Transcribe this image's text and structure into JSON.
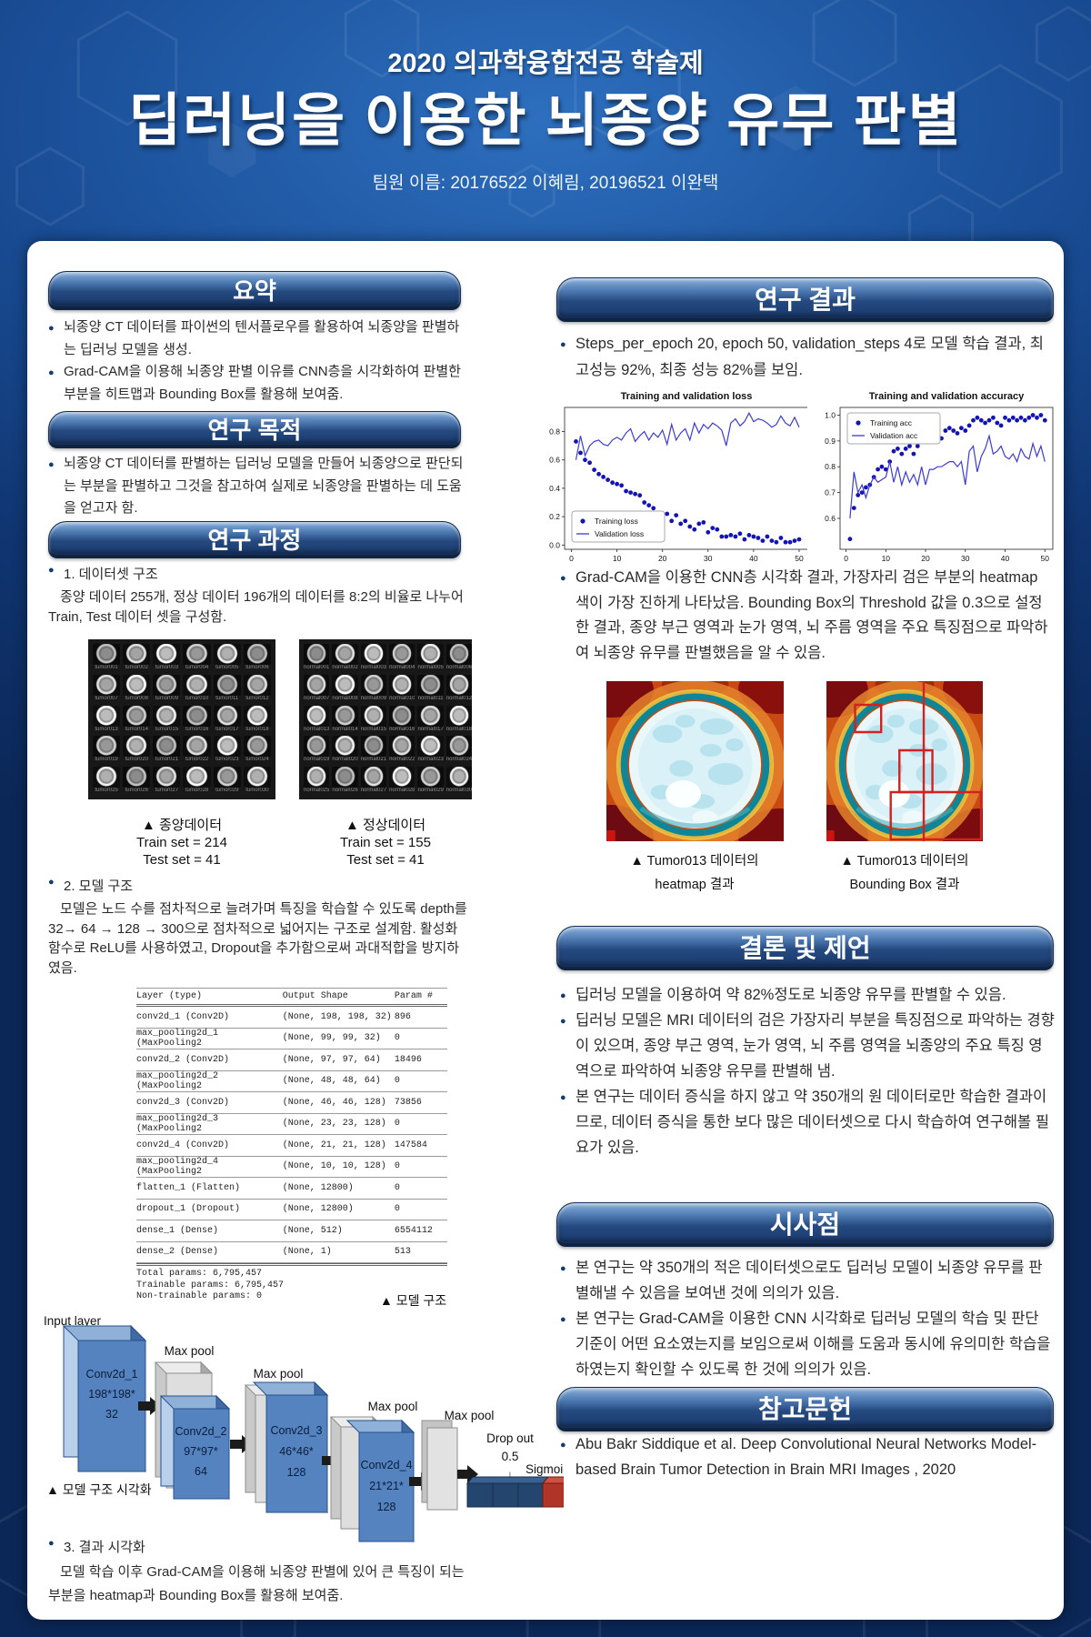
{
  "poster": {
    "event": "2020 의과학융합전공 학술제",
    "title": "딥러닝을 이용한 뇌종양 유무 판별",
    "team": "팀원 이름: 20176522 이혜림, 20196521 이완택"
  },
  "colors": {
    "background": "#103571",
    "header_bar": "#24497f",
    "bullet": "#173a6f",
    "chart_dot_blue": "#1414b4",
    "chart_line_blue": "#3b3bd6",
    "bounding_box_red": "#d42020"
  },
  "sections": {
    "summary": {
      "heading": "요약",
      "bullets": [
        "뇌종양 CT 데이터를 파이썬의 텐서플로우를 활용하여 뇌종양을 판별하는 딥러닝 모델을 생성.",
        "Grad-CAM을 이용해 뇌종양 판별 이유를 CNN층을 시각화하여 판별한 부분을 히트맵과 Bounding Box를 활용해 보여줌."
      ]
    },
    "purpose": {
      "heading": "연구 목적",
      "bullets": [
        "뇌종양 CT 데이터를 판별하는 딥러닝 모델을 만들어 뇌종양으로 판단되는 부분을 판별하고 그것을 참고하여 실제로 뇌종양을 판별하는 데 도움을 얻고자 함."
      ]
    },
    "process": {
      "heading": "연구 과정",
      "item1_title": "1. 데이터셋 구조",
      "item1_body": "종양 데이터 255개, 정상 데이터 196개의 데이터를 8:2의 비율로 나누어 Train, Test 데이터 셋을 구성함.",
      "datasets": [
        {
          "caption": "▲ 종양데이터",
          "train": "Train set = 214",
          "test": "Test set = 41",
          "label_prefix": "tumor",
          "label_count": 30
        },
        {
          "caption": "▲ 정상데이터",
          "train": "Train set = 155",
          "test": "Test set = 41",
          "label_prefix": "normal",
          "label_count": 30
        }
      ],
      "item2_title": "2. 모델 구조",
      "item2_body": "모델은 노드 수를 점차적으로 늘려가며 특징을 학습할 수 있도록 depth를 32→ 64 → 128 → 300으로 점차적으로 넓어지는 구조로 설계함. 활성화 함수로 ReLU를 사용하였고, Dropout을 추가함으로써 과대적합을 방지하였음.",
      "model_table": {
        "headers": [
          "Layer (type)",
          "Output Shape",
          "Param #"
        ],
        "rows": [
          [
            "conv2d_1 (Conv2D)",
            "(None, 198, 198, 32)",
            "896"
          ],
          [
            "max_pooling2d_1 (MaxPooling2",
            "(None, 99, 99, 32)",
            "0"
          ],
          [
            "conv2d_2 (Conv2D)",
            "(None, 97, 97, 64)",
            "18496"
          ],
          [
            "max_pooling2d_2 (MaxPooling2",
            "(None, 48, 48, 64)",
            "0"
          ],
          [
            "conv2d_3 (Conv2D)",
            "(None, 46, 46, 128)",
            "73856"
          ],
          [
            "max_pooling2d_3 (MaxPooling2",
            "(None, 23, 23, 128)",
            "0"
          ],
          [
            "conv2d_4 (Conv2D)",
            "(None, 21, 21, 128)",
            "147584"
          ],
          [
            "max_pooling2d_4 (MaxPooling2",
            "(None, 10, 10, 128)",
            "0"
          ],
          [
            "flatten_1 (Flatten)",
            "(None, 12800)",
            "0"
          ],
          [
            "dropout_1 (Dropout)",
            "(None, 12800)",
            "0"
          ],
          [
            "dense_1 (Dense)",
            "(None, 512)",
            "6554112"
          ],
          [
            "dense_2 (Dense)",
            "(None, 1)",
            "513"
          ]
        ],
        "totals": [
          "Total params: 6,795,457",
          "Trainable params: 6,795,457",
          "Non-trainable params: 0"
        ]
      },
      "table_caption": "▲ 모델 구조",
      "diagram": {
        "input_label": "Input layer",
        "maxpool_label": "Max pool",
        "dropout_label": "Drop out",
        "dropout_value": "0.5",
        "dropout_arrow": "↓",
        "sigmoid_label": "Sigmoid",
        "blocks": [
          {
            "lines": [
              "Conv2d_1",
              "198*198*",
              "32"
            ]
          },
          {
            "lines": [
              "Conv2d_2",
              "97*97*",
              "64"
            ]
          },
          {
            "lines": [
              "Conv2d_3",
              "46*46*",
              "128"
            ]
          },
          {
            "lines": [
              "Conv2d_4",
              "21*21*",
              "128"
            ]
          }
        ]
      },
      "diagram_caption": "▲ 모델 구조 시각화",
      "item3_title": "3. 결과 시각화",
      "item3_body": "모델 학습 이후 Grad-CAM을 이용해 뇌종양 판별에 있어 큰 특징이 되는 부분을 heatmap과 Bounding Box를 활용해 보여줌."
    },
    "results": {
      "heading": "연구 결과",
      "bullets": [
        "Steps_per_epoch 20, epoch 50, validation_steps 4로 모델 학습 결과, 최고성능 92%, 최종 성능 82%를 보임.",
        "Grad-CAM을 이용한 CNN층 시각화 결과, 가장자리 검은 부분의 heatmap 색이 가장 진하게 나타났음. Bounding Box의 Threshold 값을 0.3으로 설정한 결과, 종양 부근 영역과 눈가 영역, 뇌 주름 영역을 주요 특징점으로 파악하여 뇌종양 유무를 판별했음을 알 수 있음."
      ],
      "figures": [
        {
          "caption_line1": "▲ Tumor013 데이터의",
          "caption_line2": "heatmap 결과"
        },
        {
          "caption_line1": "▲ Tumor013 데이터의",
          "caption_line2": "Bounding Box 결과"
        }
      ]
    },
    "conclusion": {
      "heading": "결론 및 제언",
      "bullets": [
        "딥러닝 모델을 이용하여 약 82%정도로 뇌종양 유무를 판별할 수 있음.",
        "딥러닝 모델은 MRI 데이터의 검은 가장자리 부분을 특징점으로 파악하는 경향이 있으며, 종양 부근 영역, 눈가 영역, 뇌 주름 영역을 뇌종양의 주요 특징 영역으로 파악하여 뇌종양 유무를 판별해 냄.",
        "본 연구는 데이터 증식을 하지 않고 약 350개의 원 데이터로만 학습한 결과이므로, 데이터 증식을 통한 보다 많은 데이터셋으로 다시 학습하여 연구해볼 필요가 있음."
      ]
    },
    "implications": {
      "heading": "시사점",
      "bullets": [
        "본 연구는 약 350개의 적은 데이터셋으로도 딥러닝 모델이 뇌종양 유무를 판별해낼 수 있음을  보여낸 것에 의의가 있음.",
        "본 연구는 Grad-CAM을 이용한 CNN 시각화로 딥러닝 모델의 학습 및 판단 기준이 어떤 요소였는지를 보임으로써 이해를 도움과 동시에 유의미한 학습을 하였는지 확인할 수 있도록 한 것에 의의가 있음."
      ]
    },
    "references": {
      "heading": "참고문헌",
      "bullets": [
        "Abu Bakr Siddique et al. Deep Convolutional Neural Networks Model-based Brain Tumor Detection in Brain MRI Images , 2020"
      ]
    }
  },
  "chart_data": [
    {
      "type": "line",
      "title": "Training and validation loss",
      "x_start": 1,
      "xlim": [
        -1.5,
        52
      ],
      "ylim": [
        -0.03,
        0.97
      ],
      "xticks": [
        0,
        10,
        20,
        30,
        40,
        50
      ],
      "yticks": [
        0.0,
        0.2,
        0.4,
        0.6,
        0.8
      ],
      "legend_pos": "lower-left",
      "series": [
        {
          "name": "Training loss",
          "style": "dots",
          "color": "#1414b4",
          "values": [
            0.73,
            0.65,
            0.6,
            0.58,
            0.53,
            0.5,
            0.48,
            0.46,
            0.44,
            0.43,
            0.42,
            0.38,
            0.37,
            0.36,
            0.35,
            0.3,
            0.28,
            0.26,
            0.22,
            0.21,
            0.22,
            0.17,
            0.21,
            0.15,
            0.17,
            0.13,
            0.11,
            0.15,
            0.16,
            0.09,
            0.12,
            0.11,
            0.06,
            0.06,
            0.07,
            0.06,
            0.08,
            0.04,
            0.07,
            0.06,
            0.05,
            0.03,
            0.06,
            0.03,
            0.02,
            0.05,
            0.02,
            0.02,
            0.03,
            0.04
          ]
        },
        {
          "name": "Validation loss",
          "style": "line",
          "color": "#3b3bd6",
          "values": [
            0.6,
            0.77,
            0.63,
            0.7,
            0.73,
            0.74,
            0.71,
            0.7,
            0.74,
            0.76,
            0.74,
            0.79,
            0.82,
            0.73,
            0.77,
            0.8,
            0.74,
            0.79,
            0.76,
            0.81,
            0.71,
            0.85,
            0.74,
            0.79,
            0.82,
            0.74,
            0.86,
            0.79,
            0.85,
            0.82,
            0.86,
            0.84,
            0.81,
            0.7,
            0.86,
            0.89,
            0.84,
            0.87,
            0.93,
            0.87,
            0.89,
            0.88,
            0.86,
            0.83,
            0.85,
            0.91,
            0.86,
            0.84,
            0.9,
            0.83
          ]
        }
      ]
    },
    {
      "type": "line",
      "title": "Training and validation accuracy",
      "x_start": 1,
      "xlim": [
        -1.5,
        52
      ],
      "ylim": [
        0.48,
        1.03
      ],
      "xticks": [
        0,
        10,
        20,
        30,
        40,
        50
      ],
      "yticks": [
        0.6,
        0.7,
        0.8,
        0.9,
        1.0
      ],
      "legend_pos": "upper-left",
      "series": [
        {
          "name": "Training acc",
          "style": "dots",
          "color": "#1414b4",
          "values": [
            0.52,
            0.64,
            0.69,
            0.7,
            0.72,
            0.73,
            0.76,
            0.79,
            0.8,
            0.79,
            0.82,
            0.86,
            0.87,
            0.85,
            0.87,
            0.88,
            0.85,
            0.88,
            0.92,
            0.92,
            0.9,
            0.92,
            0.93,
            0.91,
            0.94,
            0.95,
            0.94,
            0.93,
            0.95,
            0.94,
            0.96,
            0.98,
            0.99,
            0.98,
            0.97,
            0.98,
            0.99,
            0.97,
            0.96,
            0.99,
            0.98,
            0.99,
            0.98,
            0.99,
            0.98,
            0.99,
            1.0,
            0.99,
            1.0,
            0.98
          ]
        },
        {
          "name": "Validation acc",
          "style": "line",
          "color": "#3b3bd6",
          "values": [
            0.6,
            0.78,
            0.7,
            0.73,
            0.68,
            0.73,
            0.76,
            0.74,
            0.75,
            0.76,
            0.82,
            0.74,
            0.8,
            0.73,
            0.78,
            0.74,
            0.77,
            0.73,
            0.8,
            0.73,
            0.79,
            0.79,
            0.8,
            0.8,
            0.81,
            0.82,
            0.82,
            0.8,
            0.82,
            0.73,
            0.86,
            0.88,
            0.78,
            0.84,
            0.87,
            0.92,
            0.85,
            0.86,
            0.88,
            0.84,
            0.83,
            0.85,
            0.82,
            0.87,
            0.84,
            0.83,
            0.89,
            0.84,
            0.88,
            0.82
          ]
        }
      ]
    }
  ]
}
